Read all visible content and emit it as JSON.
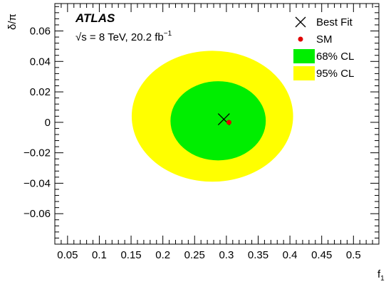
{
  "chart_data": {
    "type": "contour",
    "experiment": "ATLAS",
    "energy_label": "√s = 8 TeV, 20.2 fb",
    "lumi_exponent": "−1",
    "xlabel": "f",
    "xlabel_sub": "1",
    "ylabel": "δ/π",
    "xlim": [
      0.03,
      0.54
    ],
    "ylim": [
      -0.08,
      0.078
    ],
    "x_ticks": [
      "0.05",
      "0.1",
      "0.15",
      "0.2",
      "0.25",
      "0.3",
      "0.35",
      "0.4",
      "0.45",
      "0.5"
    ],
    "x_tick_values": [
      0.05,
      0.1,
      0.15,
      0.2,
      0.25,
      0.3,
      0.35,
      0.4,
      0.45,
      0.5
    ],
    "y_ticks": [
      "0.06",
      "0.04",
      "0.02",
      "0",
      "−0.02",
      "−0.04",
      "−0.06"
    ],
    "y_tick_values": [
      0.06,
      0.04,
      0.02,
      0,
      -0.02,
      -0.04,
      -0.06
    ],
    "best_fit": {
      "x": 0.296,
      "y": 0.002
    },
    "sm": {
      "x": 0.304,
      "y": 0.0
    },
    "contours": [
      {
        "name": "95% CL",
        "color": "#ffff00",
        "center": [
          0.278,
          0.004
        ],
        "half_width": [
          0.127,
          0.043
        ]
      },
      {
        "name": "68% CL",
        "color": "#00ee00",
        "center": [
          0.287,
          0.001
        ],
        "half_width": [
          0.075,
          0.026
        ]
      }
    ],
    "legend": [
      {
        "label": "Best Fit",
        "marker": "cross",
        "color": "#000000"
      },
      {
        "label": "SM",
        "marker": "dot",
        "color": "#e00000"
      },
      {
        "label": "68% CL",
        "marker": "box",
        "color": "#00ee00"
      },
      {
        "label": "95% CL",
        "marker": "box",
        "color": "#ffff00"
      }
    ],
    "legend_position": "top-right"
  }
}
